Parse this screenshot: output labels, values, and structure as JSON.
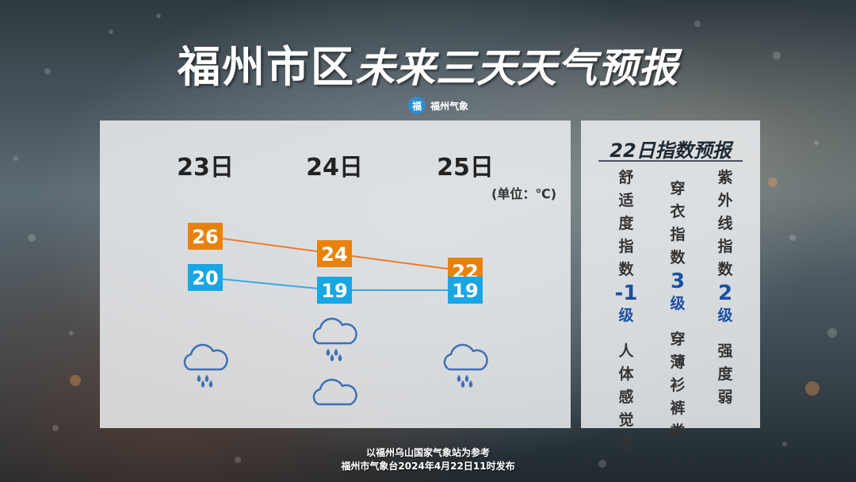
{
  "header": {
    "title_main": "福州市区",
    "title_sub": "未来三天天气预报",
    "brand_logo_text": "福",
    "brand_name": "福州气象"
  },
  "chart_data": {
    "type": "line",
    "unit_label": "(单位：℃)",
    "categories": [
      "23日",
      "24日",
      "25日"
    ],
    "series": [
      {
        "values": [
          26,
          24,
          22
        ],
        "color": "#f07a2a",
        "box_color": "#e8820c"
      },
      {
        "values": [
          20,
          19,
          19
        ],
        "color": "#36a9e8",
        "box_color": "#19a6e3"
      }
    ],
    "weather_icons": [
      [
        "rain-cloud-icon"
      ],
      [
        "rain-cloud-icon",
        "cloud-icon"
      ],
      [
        "rain-cloud-icon"
      ]
    ],
    "icon_color": "#3f6fb5"
  },
  "indices": {
    "title": "22日指数预报",
    "items": [
      {
        "name": "舒适度\n指数",
        "level": "-1",
        "level_unit": "级",
        "desc": "人\n体\n感\n觉\n凉"
      },
      {
        "name": "穿\n衣\n指\n数",
        "level": "3",
        "level_unit": "级",
        "desc": "穿\n薄\n衫\n裤\n类"
      },
      {
        "name": "紫\n外\n线\n指\n数",
        "level": "2",
        "level_unit": "级",
        "desc": "强\n度\n弱"
      }
    ]
  },
  "footer": {
    "line1": "以福州乌山国家气象站为参考",
    "line2": "福州市气象台2024年4月22日11时发布"
  }
}
